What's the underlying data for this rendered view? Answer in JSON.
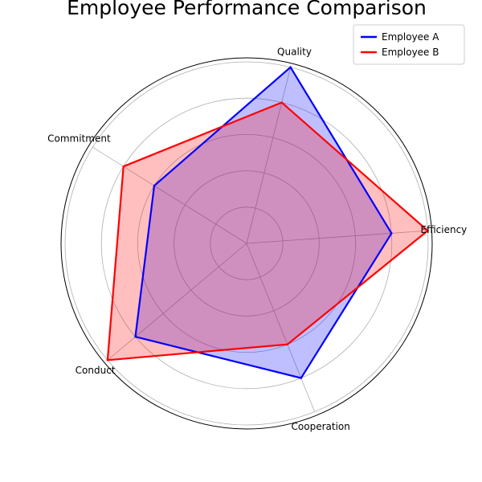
{
  "chart_data": {
    "type": "radar",
    "title": "Employee Performance Comparison",
    "categories": [
      "Efficiency",
      "Quality",
      "Commitment",
      "Conduct",
      "Cooperation"
    ],
    "rmax": 5,
    "gridlines": [
      1,
      2,
      3,
      4,
      5
    ],
    "grid": true,
    "series": [
      {
        "name": "Employee A",
        "color": "#0000ff",
        "values": [
          4,
          5,
          3,
          4,
          4
        ]
      },
      {
        "name": "Employee B",
        "color": "#ff0000",
        "values": [
          5,
          4,
          4,
          5,
          3
        ]
      }
    ],
    "legend": {
      "position": "top-right"
    }
  }
}
